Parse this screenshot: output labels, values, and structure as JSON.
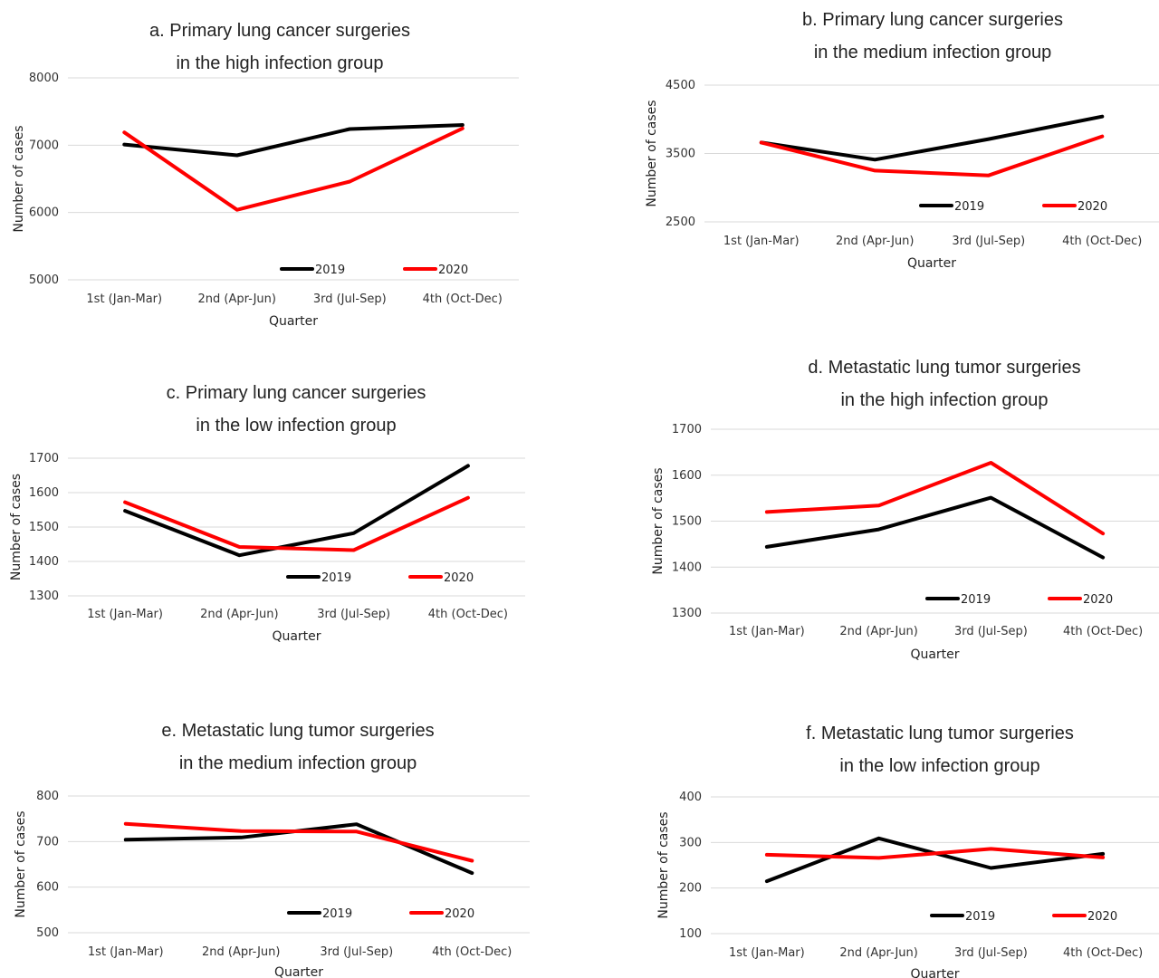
{
  "colors": {
    "y2019": "#000000",
    "y2020": "#ff0000"
  },
  "chart_data": [
    {
      "type": "line",
      "title_line1": "a. Primary lung cancer surgeries",
      "title_line2": "in the high infection group",
      "xlabel": "Quarter",
      "ylabel": "Number of cases",
      "categories": [
        "1st (Jan-Mar)",
        "2nd (Apr-Jun)",
        "3rd (Jul-Sep)",
        "4th (Oct-Dec)"
      ],
      "ylim": [
        5000,
        8000
      ],
      "yticks": [
        5000,
        6000,
        7000,
        8000
      ],
      "series": [
        {
          "name": "2019",
          "values": [
            7010,
            6850,
            7240,
            7300
          ]
        },
        {
          "name": "2020",
          "values": [
            7190,
            6040,
            6460,
            7250
          ]
        }
      ]
    },
    {
      "type": "line",
      "title_line1": "b. Primary lung cancer surgeries",
      "title_line2": "in the medium infection group",
      "xlabel": "Quarter",
      "ylabel": "Number of cases",
      "categories": [
        "1st (Jan-Mar)",
        "2nd (Apr-Jun)",
        "3rd (Jul-Sep)",
        "4th (Oct-Dec)"
      ],
      "ylim": [
        2500,
        4500
      ],
      "yticks": [
        2500,
        3500,
        4500
      ],
      "series": [
        {
          "name": "2019",
          "values": [
            3660,
            3410,
            3710,
            4040
          ]
        },
        {
          "name": "2020",
          "values": [
            3660,
            3250,
            3180,
            3750
          ]
        }
      ]
    },
    {
      "type": "line",
      "title_line1": "c. Primary lung cancer surgeries",
      "title_line2": "in the low infection group",
      "xlabel": "Quarter",
      "ylabel": "Number of cases",
      "categories": [
        "1st (Jan-Mar)",
        "2nd (Apr-Jun)",
        "3rd (Jul-Sep)",
        "4th (Oct-Dec)"
      ],
      "ylim": [
        1300,
        1700
      ],
      "yticks": [
        1300,
        1400,
        1500,
        1600,
        1700
      ],
      "series": [
        {
          "name": "2019",
          "values": [
            1547,
            1418,
            1482,
            1678
          ]
        },
        {
          "name": "2020",
          "values": [
            1572,
            1442,
            1433,
            1585
          ]
        }
      ]
    },
    {
      "type": "line",
      "title_line1": "d. Metastatic lung tumor surgeries",
      "title_line2": "in the high infection group",
      "xlabel": "Quarter",
      "ylabel": "Number of cases",
      "categories": [
        "1st (Jan-Mar)",
        "2nd (Apr-Jun)",
        "3rd (Jul-Sep)",
        "4th (Oct-Dec)"
      ],
      "ylim": [
        1300,
        1700
      ],
      "yticks": [
        1300,
        1400,
        1500,
        1600,
        1700
      ],
      "series": [
        {
          "name": "2019",
          "values": [
            1444,
            1482,
            1551,
            1421
          ]
        },
        {
          "name": "2020",
          "values": [
            1520,
            1534,
            1627,
            1473
          ]
        }
      ]
    },
    {
      "type": "line",
      "title_line1": "e. Metastatic lung tumor surgeries",
      "title_line2": "in the medium infection group",
      "xlabel": "Quarter",
      "ylabel": "Number of cases",
      "categories": [
        "1st (Jan-Mar)",
        "2nd (Apr-Jun)",
        "3rd (Jul-Sep)",
        "4th (Oct-Dec)"
      ],
      "ylim": [
        500,
        800
      ],
      "yticks": [
        500,
        600,
        700,
        800
      ],
      "series": [
        {
          "name": "2019",
          "values": [
            704,
            709,
            738,
            631
          ]
        },
        {
          "name": "2020",
          "values": [
            739,
            723,
            722,
            658
          ]
        }
      ]
    },
    {
      "type": "line",
      "title_line1": "f. Metastatic lung tumor surgeries",
      "title_line2": "in the low infection group",
      "xlabel": "Quarter",
      "ylabel": "Number of cases",
      "categories": [
        "1st (Jan-Mar)",
        "2nd (Apr-Jun)",
        "3rd (Jul-Sep)",
        "4th (Oct-Dec)"
      ],
      "ylim": [
        100,
        400
      ],
      "yticks": [
        100,
        200,
        300,
        400
      ],
      "series": [
        {
          "name": "2019",
          "values": [
            215,
            309,
            244,
            275
          ]
        },
        {
          "name": "2020",
          "values": [
            273,
            266,
            286,
            267
          ]
        }
      ]
    }
  ]
}
